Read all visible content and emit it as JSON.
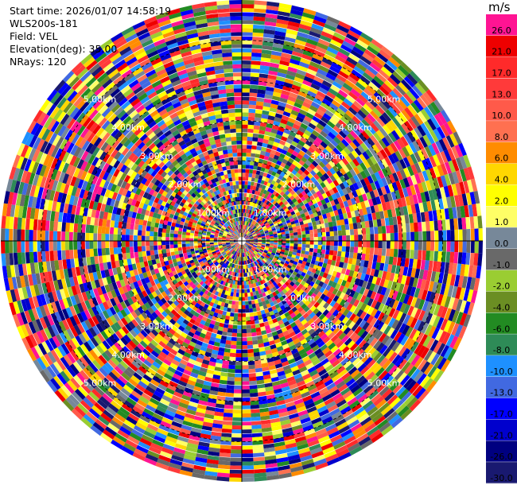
{
  "info": {
    "start_time": "Start time: 2026/01/07 14:58:19",
    "station": "WLS200s-181",
    "field": "Field: VEL",
    "elevation": "Elevation(deg): 35.00",
    "nrays": "NRays: 120"
  },
  "colorbar": {
    "unit": "m/s",
    "levels": [
      {
        "label": "26.0",
        "color": "#ff1493"
      },
      {
        "label": "21.0",
        "color": "#ee0000"
      },
      {
        "label": "17.0",
        "color": "#ff2a2a"
      },
      {
        "label": "13.0",
        "color": "#ff3a3a"
      },
      {
        "label": "10.0",
        "color": "#ff5a4a"
      },
      {
        "label": "8.0",
        "color": "#ff7050"
      },
      {
        "label": "6.0",
        "color": "#ff8c00"
      },
      {
        "label": "4.0",
        "color": "#ffd700"
      },
      {
        "label": "2.0",
        "color": "#ffff00"
      },
      {
        "label": "1.0",
        "color": "#ffff66"
      },
      {
        "label": "0.0",
        "color": "#778899"
      },
      {
        "label": "-1.0",
        "color": "#696969"
      },
      {
        "label": "-2.0",
        "color": "#9acd32"
      },
      {
        "label": "-4.0",
        "color": "#6b8e23"
      },
      {
        "label": "-6.0",
        "color": "#228b22"
      },
      {
        "label": "-8.0",
        "color": "#2e8b57"
      },
      {
        "label": "-10.0",
        "color": "#1e90ff"
      },
      {
        "label": "-13.0",
        "color": "#4169e1"
      },
      {
        "label": "-17.0",
        "color": "#0000ff"
      },
      {
        "label": "-21.0",
        "color": "#0000cd"
      },
      {
        "label": "-26.0",
        "color": "#000080"
      },
      {
        "label": "-30.0",
        "color": "#191970"
      }
    ]
  },
  "chart_data": {
    "type": "heatmap",
    "projection": "polar (PPI scan)",
    "field": "VEL",
    "units": "m/s",
    "elevation_deg": 35.0,
    "n_rays": 120,
    "range_max_km": 6.0,
    "range_rings_km": [
      1.0,
      2.0,
      3.0,
      4.0,
      5.0
    ],
    "ring_labels": [
      "1.00km",
      "2.00km",
      "3.00km",
      "4.00km",
      "5.00km"
    ],
    "value_range": [
      -30.0,
      26.0
    ],
    "note_values": "velocity bins appear noise-like across all gates"
  }
}
